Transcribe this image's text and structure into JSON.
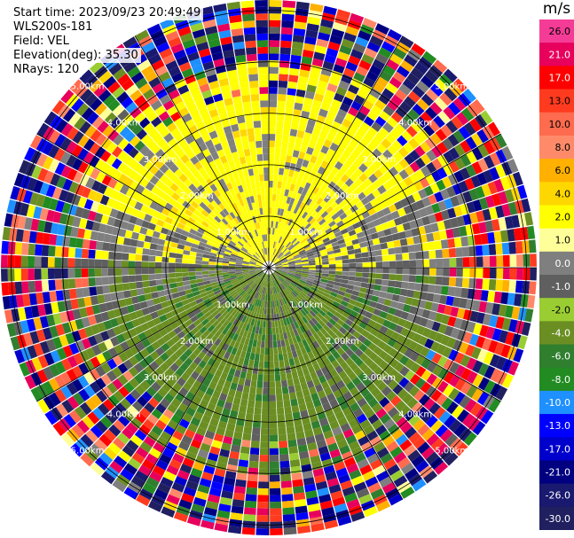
{
  "info": {
    "start_time": "Start time: 2023/09/23 20:49:49",
    "instrument": "WLS200s-181",
    "field": "Field: VEL",
    "elevation": "Elevation(deg): 35.30",
    "nrays": "NRays: 120"
  },
  "colorbar": {
    "unit": "m/s",
    "ticks": [
      "26.0",
      "21.0",
      "17.0",
      "13.0",
      "10.0",
      "8.0",
      "6.0",
      "4.0",
      "2.0",
      "1.0",
      "0.0",
      "-1.0",
      "-2.0",
      "-4.0",
      "-6.0",
      "-8.0",
      "-10.0",
      "-13.0",
      "-17.0",
      "-21.0",
      "-26.0",
      "-30.0"
    ],
    "colors": [
      "#f43c96",
      "#e7005c",
      "#ff0000",
      "#ff3b1f",
      "#ff6b4e",
      "#ff8a6a",
      "#ffb000",
      "#ffd700",
      "#ffff00",
      "#ffff99",
      "#7f7f7f",
      "#5f5f5f",
      "#9acd32",
      "#6b8e23",
      "#2f7f2f",
      "#228b22",
      "#1e90ff",
      "#0000ff",
      "#0000cd",
      "#000080",
      "#191970",
      "#202060"
    ]
  },
  "chart_data": {
    "type": "heatmap",
    "projection": "polar PPI",
    "field": "VEL",
    "unit": "m/s",
    "nrays": 120,
    "elevation_deg": 35.3,
    "range_rings_km": [
      1.0,
      2.0,
      3.0,
      4.0,
      5.0
    ],
    "ring_labels": [
      "1.00km",
      "2.00km",
      "3.00km",
      "4.00km",
      "5.00km"
    ],
    "max_range_km": 5.2,
    "colorbar_ticks": [
      26.0,
      21.0,
      17.0,
      13.0,
      10.0,
      8.0,
      6.0,
      4.0,
      2.0,
      1.0,
      0.0,
      -1.0,
      -2.0,
      -4.0,
      -6.0,
      -8.0,
      -10.0,
      -13.0,
      -17.0,
      -21.0,
      -26.0,
      -30.0
    ],
    "pattern": {
      "north_half_velocity_ms": 2.0,
      "south_half_velocity_ms": -2.0,
      "near_zero_sector_deg": [
        60,
        110
      ],
      "noise_beyond_km": 4.0
    }
  }
}
